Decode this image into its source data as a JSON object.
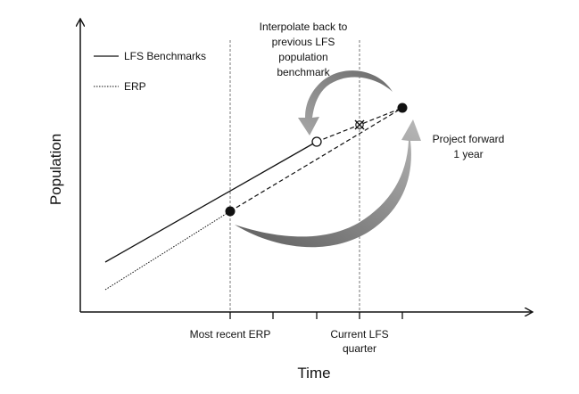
{
  "diagram": {
    "annotations": {
      "interpolate": [
        "Interpolate back to",
        "previous LFS",
        "population",
        "benchmark"
      ],
      "project": [
        "Project forward",
        "1 year"
      ]
    },
    "legend": {
      "lfs": "LFS Benchmarks",
      "erp": "ERP"
    },
    "axes": {
      "y_label": "Population",
      "x_label": "Time"
    },
    "x_ticks": {
      "erp": "Most recent ERP",
      "lfs_line1": "Current LFS",
      "lfs_line2": "quarter"
    },
    "colors": {
      "line": "#111111",
      "arrow": "#8c8c8c",
      "arrow_dark": "#6e6e6e",
      "guide": "#555555",
      "text": "#111111"
    }
  }
}
